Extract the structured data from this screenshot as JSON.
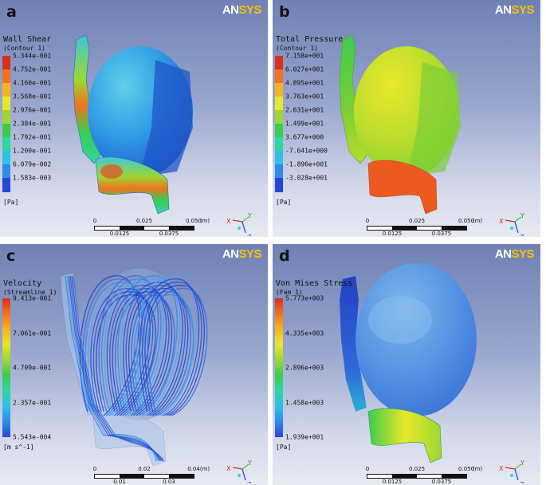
{
  "panels": [
    {
      "letter": "a",
      "logo": {
        "an": "AN",
        "sys": "SYS"
      },
      "legend": {
        "title": "Wall Shear",
        "subtitle": "(Contour 1)",
        "ticks": [
          "5.344e-001",
          "4.752e-001",
          "4.160e-001",
          "3.568e-001",
          "2.976e-001",
          "2.384e-001",
          "1.792e-001",
          "1.200e-001",
          "6.079e-002",
          "1.583e-003"
        ],
        "unit": "[Pa]"
      },
      "scalebar": {
        "top": [
          "0",
          "0.025",
          "0.050"
        ],
        "bottom": [
          "0.0125",
          "0.0375"
        ],
        "unit": "(m)"
      },
      "axes": {
        "x": "X",
        "y": "Y",
        "z": "Z"
      }
    },
    {
      "letter": "b",
      "logo": {
        "an": "AN",
        "sys": "SYS"
      },
      "legend": {
        "title": "Total Pressure",
        "subtitle": "(Contour 1)",
        "ticks": [
          "7.158e+001",
          "6.027e+001",
          "4.895e+001",
          "3.763e+001",
          "2.631e+001",
          "1.499e+001",
          "3.677e+000",
          "-7.641e+000",
          "-1.896e+001",
          "-3.028e+001"
        ],
        "unit": "[Pa]"
      },
      "scalebar": {
        "top": [
          "0",
          "0.025",
          "0.050"
        ],
        "bottom": [
          "0.0125",
          "0.0375"
        ],
        "unit": "(m)"
      },
      "axes": {
        "x": "X",
        "y": "Y",
        "z": "Z"
      }
    },
    {
      "letter": "c",
      "logo": {
        "an": "AN",
        "sys": "SYS"
      },
      "legend": {
        "title": "Velocity",
        "subtitle": "(Streamline 1)",
        "ticks": [
          "9.413e-001",
          "7.061e-001",
          "4.709e-001",
          "2.357e-001",
          "5.543e-004"
        ],
        "unit": "[m s^-1]"
      },
      "scalebar": {
        "top": [
          "0",
          "0.02",
          "0.04"
        ],
        "bottom": [
          "0.01",
          "0.03"
        ],
        "unit": "(m)"
      },
      "axes": {
        "x": "X",
        "y": "Y",
        "z": "Z"
      }
    },
    {
      "letter": "d",
      "logo": {
        "an": "AN",
        "sys": "SYS"
      },
      "legend": {
        "title": "Von Mises Stress",
        "subtitle": "(Fam_1)",
        "ticks": [
          "5.773e+003",
          "4.335e+003",
          "2.896e+003",
          "1.458e+003",
          "1.939e+001"
        ],
        "unit": "[Pa]"
      },
      "scalebar": {
        "top": [
          "0",
          "0.025",
          "0.050"
        ],
        "bottom": [
          "0.0125",
          "0.0375"
        ],
        "unit": "(m)"
      },
      "axes": {
        "x": "X",
        "y": "Y",
        "z": "Z"
      }
    }
  ],
  "colors": {
    "colormap": [
      "#d7301f",
      "#f2721f",
      "#f5b51c",
      "#e8e82a",
      "#9bd832",
      "#3ccc4c",
      "#2fd6a4",
      "#2ec0e6",
      "#2f8be8",
      "#2947d6"
    ],
    "background_top": "#6f80b4",
    "background_bottom": "#e7e9f2"
  }
}
